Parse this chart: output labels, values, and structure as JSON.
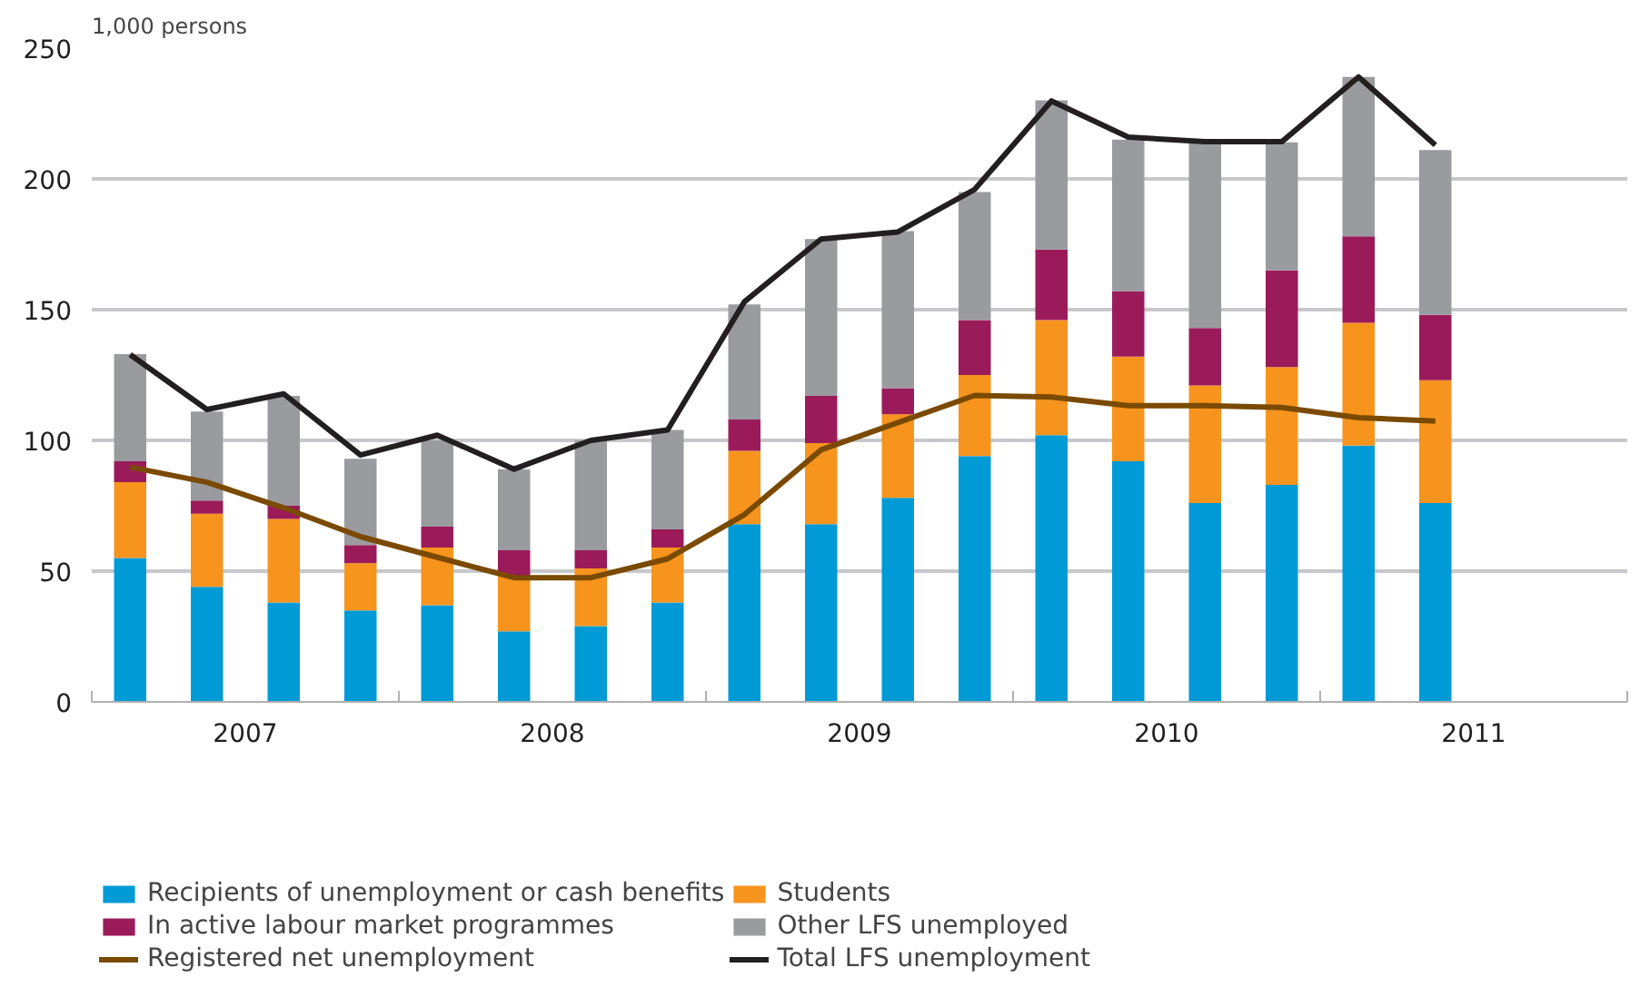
{
  "chart_data": {
    "type": "bar",
    "stacked": true,
    "ylabel": "1,000 persons",
    "x": [
      2007.125,
      2007.375,
      2007.625,
      2007.875,
      2008.125,
      2008.375,
      2008.625,
      2008.875,
      2009.125,
      2009.375,
      2009.625,
      2009.875,
      2010.125,
      2010.375,
      2010.625,
      2010.875,
      2011.125,
      2011.375
    ],
    "xlim": [
      2007,
      2012
    ],
    "xticks": [
      {
        "value": 2007,
        "label": null
      },
      {
        "value": 2007.5,
        "label": "2007"
      },
      {
        "value": 2008,
        "label": null
      },
      {
        "value": 2008.5,
        "label": "2008"
      },
      {
        "value": 2009,
        "label": null
      },
      {
        "value": 2009.5,
        "label": "2009"
      },
      {
        "value": 2010,
        "label": null
      },
      {
        "value": 2010.5,
        "label": "2010"
      },
      {
        "value": 2011,
        "label": null
      },
      {
        "value": 2011.5,
        "label": "2011"
      },
      {
        "value": 2012,
        "label": null
      }
    ],
    "ylim": [
      0,
      250
    ],
    "yticks": [
      0,
      50,
      100,
      150,
      200,
      250
    ],
    "grid": "y",
    "legend": "bottom",
    "series": [
      {
        "name": "Recipients of unemployment or cash benefits",
        "color": "#009ad7",
        "values": [
          55,
          44,
          38,
          35,
          37,
          27,
          29,
          38,
          68,
          68,
          78,
          94,
          102,
          92,
          76,
          83,
          98,
          76
        ]
      },
      {
        "name": "Students",
        "color": "#f7941d",
        "values": [
          29,
          28,
          32,
          18,
          22,
          21,
          22,
          21,
          28,
          31,
          32,
          31,
          44,
          40,
          45,
          45,
          47,
          47
        ]
      },
      {
        "name": "In active labour market programmes",
        "color": "#9b1b5a",
        "values": [
          8,
          5,
          5,
          7,
          8,
          10,
          7,
          7,
          12,
          18,
          10,
          21,
          27,
          25,
          22,
          37,
          33,
          25
        ]
      },
      {
        "name": "Other LFS unemployed",
        "color": "#9a9b9f",
        "values": [
          41,
          34,
          42,
          33,
          33,
          31,
          42,
          38,
          44,
          60,
          60,
          49,
          57,
          58,
          71,
          49,
          61,
          63
        ]
      },
      {
        "name": "Registered net unemployment",
        "type": "line",
        "color": "#7a4a00",
        "values": [
          89.8,
          84,
          74.2,
          63.2,
          55.3,
          47.5,
          47.5,
          54.7,
          71.6,
          96.4,
          106.8,
          117.2,
          116.6,
          113.3,
          113.3,
          112.6,
          108.7,
          107.4
        ]
      },
      {
        "name": "Total LFS unemployment",
        "type": "line",
        "color": "#231f20",
        "values": [
          132.8,
          111.8,
          117.8,
          94.4,
          102,
          89,
          100,
          104,
          153,
          177,
          179.7,
          196,
          229.8,
          216,
          214.2,
          214.2,
          239,
          212.9
        ]
      }
    ]
  }
}
